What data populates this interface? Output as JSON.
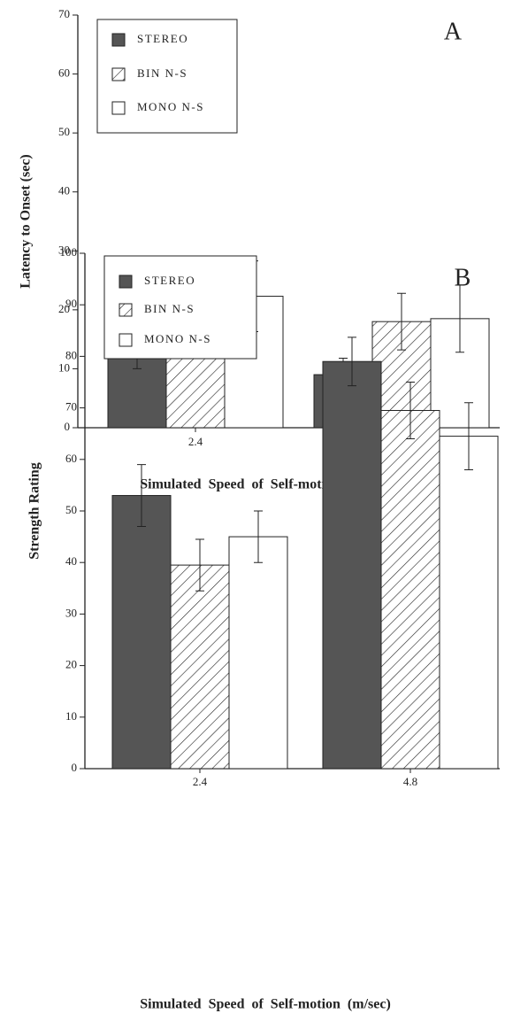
{
  "chart_data": [
    {
      "type": "bar",
      "annotation": "A",
      "x_label": "Simulated Speed of Self-motion (m/sec)",
      "y_label": "Latency to Onset (sec)",
      "categories": [
        "2.4",
        "4.8"
      ],
      "series": [
        {
          "name": "STEREO",
          "color": "#555555",
          "pattern": "solid",
          "values": [
            14.5,
            9
          ],
          "errors": [
            4.5,
            2.8
          ]
        },
        {
          "name": "BIN N-S",
          "color": "#ffffff",
          "pattern": "hatch",
          "values": [
            22.5,
            18
          ],
          "errors": [
            5.8,
            4.8
          ]
        },
        {
          "name": "MONO N-S",
          "color": "#ffffff",
          "pattern": "solid",
          "values": [
            22.3,
            18.5
          ],
          "errors": [
            6,
            5.7
          ]
        }
      ],
      "ylim": [
        0,
        70
      ],
      "yticks": [
        0,
        10,
        20,
        30,
        40,
        50,
        60,
        70
      ],
      "legend": "upper left"
    },
    {
      "type": "bar",
      "annotation": "B",
      "x_label": "Simulated Speed of Self-motion (m/sec)",
      "y_label": "Strength Rating",
      "categories": [
        "2.4",
        "4.8"
      ],
      "series": [
        {
          "name": "STEREO",
          "color": "#555555",
          "pattern": "solid",
          "values": [
            53,
            79
          ],
          "errors": [
            6,
            4.7
          ]
        },
        {
          "name": "BIN N-S",
          "color": "#ffffff",
          "pattern": "hatch",
          "values": [
            39.5,
            69.5
          ],
          "errors": [
            5,
            5.5
          ]
        },
        {
          "name": "MONO N-S",
          "color": "#ffffff",
          "pattern": "solid",
          "values": [
            45,
            64.5
          ],
          "errors": [
            5,
            6.5
          ]
        }
      ],
      "ylim": [
        0,
        100
      ],
      "yticks": [
        0,
        10,
        20,
        30,
        40,
        50,
        60,
        70,
        80,
        90,
        100
      ],
      "legend": "upper left"
    }
  ]
}
